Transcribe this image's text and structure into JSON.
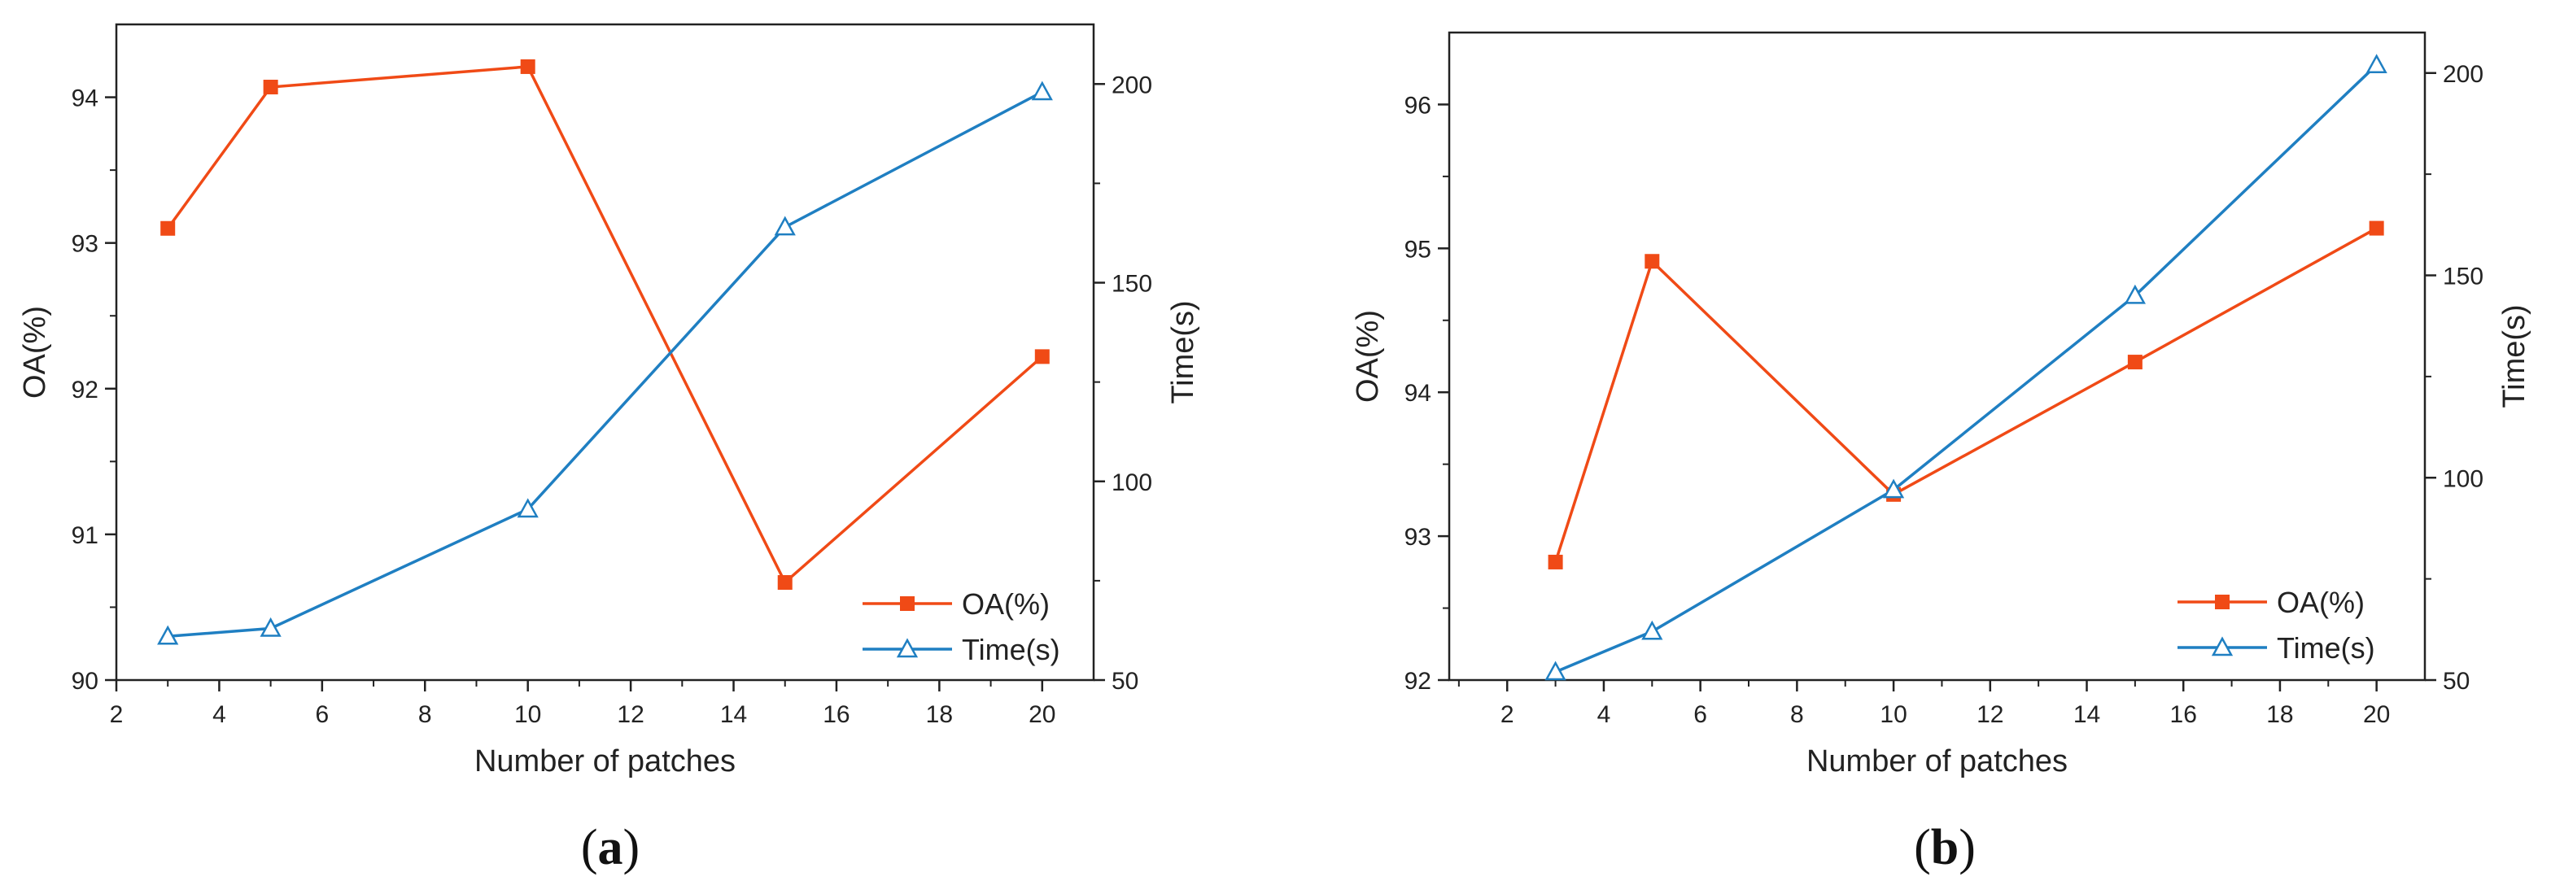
{
  "colors": {
    "oa": "#f04a16",
    "time": "#1f7fc2",
    "axis": "#222222"
  },
  "chart_data": [
    {
      "type": "line",
      "panel_label": {
        "open": "(",
        "letter": "a",
        "close": ")"
      },
      "xlabel": "Number of patches",
      "ylabel": "OA(%)",
      "y2label": "Time(s)",
      "xlim": [
        2,
        21
      ],
      "ylim": [
        90,
        94.5
      ],
      "y2lim": [
        50,
        215
      ],
      "x_ticks": [
        2,
        4,
        6,
        8,
        10,
        12,
        14,
        16,
        18,
        20
      ],
      "y_ticks": [
        90,
        91,
        92,
        93,
        94
      ],
      "y2_ticks": [
        50,
        100,
        150,
        200
      ],
      "x": [
        3,
        5,
        10,
        15,
        20
      ],
      "series": [
        {
          "name": "OA(%)",
          "axis": "left",
          "marker": "square",
          "values": [
            93.1,
            94.07,
            94.21,
            90.67,
            92.22
          ]
        },
        {
          "name": "Time(s)",
          "axis": "right",
          "marker": "triangle",
          "values": [
            61,
            63,
            93,
            164,
            198
          ]
        }
      ],
      "legend": "bottom-right"
    },
    {
      "type": "line",
      "panel_label": {
        "open": "(",
        "letter": "b",
        "close": ")"
      },
      "xlabel": "Number of patches",
      "ylabel": "OA(%)",
      "y2label": "Time(s)",
      "xlim": [
        0.8,
        21
      ],
      "ylim": [
        92,
        96.5
      ],
      "y2lim": [
        50,
        210
      ],
      "x_ticks": [
        2,
        4,
        6,
        8,
        10,
        12,
        14,
        16,
        18,
        20
      ],
      "y_ticks": [
        92,
        93,
        94,
        95,
        96
      ],
      "y2_ticks": [
        50,
        100,
        150,
        200
      ],
      "x": [
        3,
        5,
        10,
        15,
        20
      ],
      "series": [
        {
          "name": "OA(%)",
          "axis": "left",
          "marker": "square",
          "values": [
            92.82,
            94.91,
            93.29,
            94.21,
            95.14
          ]
        },
        {
          "name": "Time(s)",
          "axis": "right",
          "marker": "triangle",
          "values": [
            52,
            62,
            97,
            145,
            202
          ]
        }
      ],
      "legend": "bottom-right"
    }
  ]
}
